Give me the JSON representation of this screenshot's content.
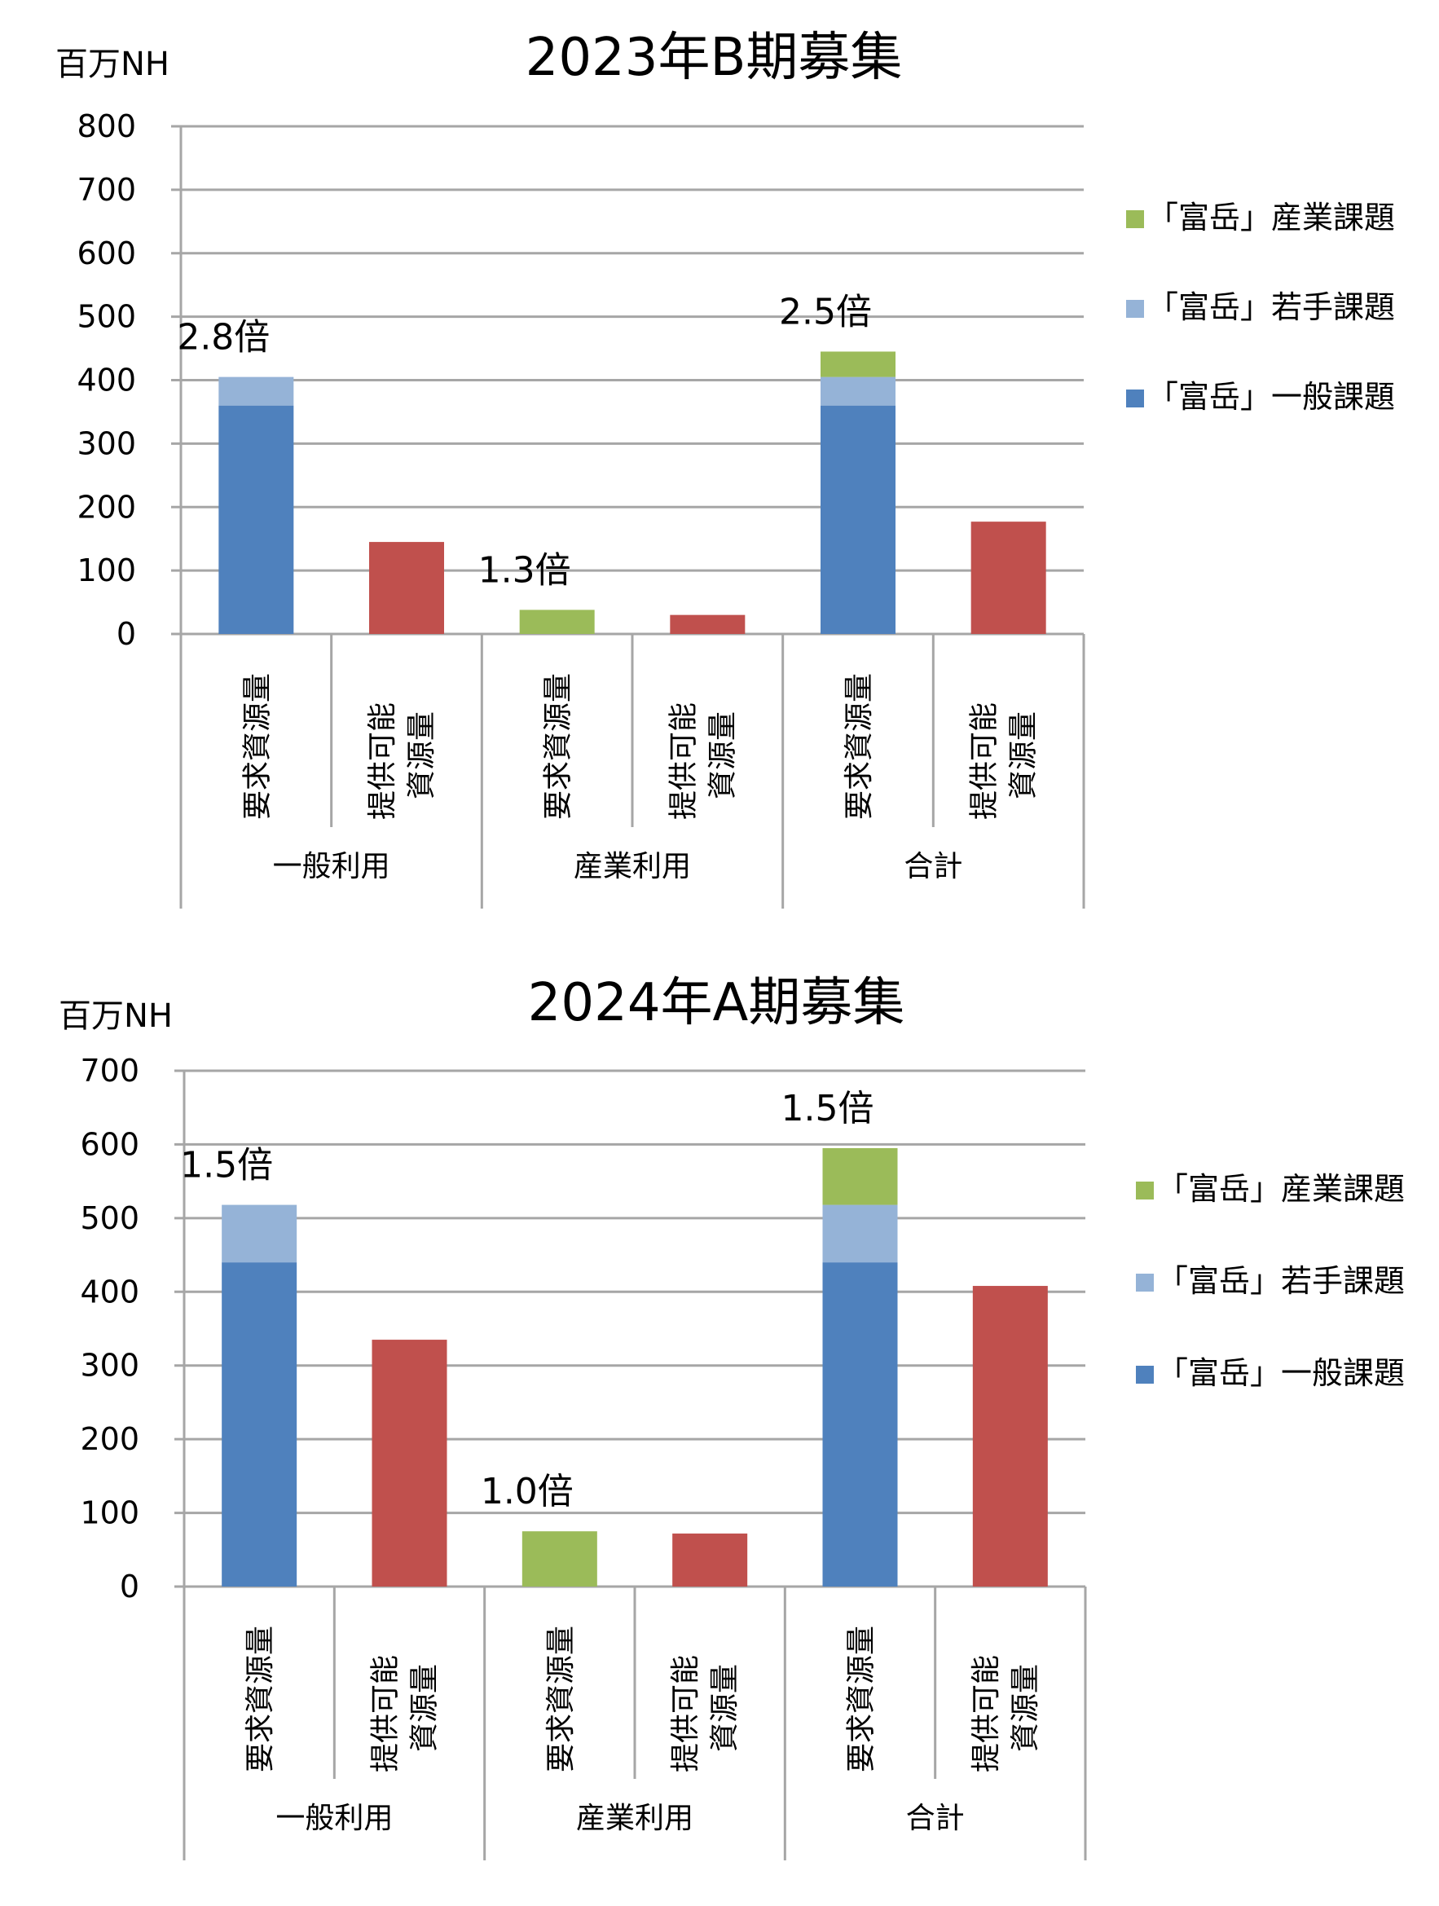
{
  "chart_data": [
    {
      "type": "bar",
      "stacked": true,
      "title": "2023年B期募集",
      "ylabel": "百万NH",
      "ylim": [
        0,
        800
      ],
      "yticks": [
        0,
        100,
        200,
        300,
        400,
        500,
        600,
        700,
        800
      ],
      "grid": true,
      "legend_position": "right",
      "groups": [
        "一般利用",
        "産業利用",
        "合計"
      ],
      "categories": [
        "要求資源量",
        "提供可能　資源量",
        "要求資源量",
        "提供可能　資源量",
        "要求資源量",
        "提供可能　資源量"
      ],
      "series": [
        {
          "name": "「富岳」一般課題",
          "color": "#4f81bd",
          "values": [
            360,
            0,
            0,
            0,
            360,
            0
          ]
        },
        {
          "name": "「富岳」若手課題",
          "color": "#95b3d7",
          "values": [
            45,
            0,
            0,
            0,
            45,
            0
          ]
        },
        {
          "name": "「富岳」産業課題",
          "color": "#9bbb59",
          "values": [
            0,
            0,
            38,
            0,
            40,
            0
          ]
        },
        {
          "name": "",
          "color": "#c0504d",
          "values": [
            0,
            145,
            0,
            30,
            0,
            177
          ]
        }
      ],
      "legend": [
        "「富岳」産業課題",
        "「富岳」若手課題",
        "「富岳」一般課題"
      ],
      "annotations": [
        "2.8倍",
        "",
        "1.3倍",
        "",
        "2.5倍",
        ""
      ]
    },
    {
      "type": "bar",
      "stacked": true,
      "title": "2024年A期募集",
      "ylabel": "百万NH",
      "ylim": [
        0,
        700
      ],
      "yticks": [
        0,
        100,
        200,
        300,
        400,
        500,
        600,
        700
      ],
      "grid": true,
      "legend_position": "right",
      "groups": [
        "一般利用",
        "産業利用",
        "合計"
      ],
      "categories": [
        "要求資源量",
        "提供可能　資源量",
        "要求資源量",
        "提供可能　資源量",
        "要求資源量",
        "提供可能　資源量"
      ],
      "series": [
        {
          "name": "「富岳」一般課題",
          "color": "#4f81bd",
          "values": [
            440,
            0,
            0,
            0,
            440,
            0
          ]
        },
        {
          "name": "「富岳」若手課題",
          "color": "#95b3d7",
          "values": [
            78,
            0,
            0,
            0,
            78,
            0
          ]
        },
        {
          "name": "「富岳」産業課題",
          "color": "#9bbb59",
          "values": [
            0,
            0,
            75,
            0,
            77,
            0
          ]
        },
        {
          "name": "",
          "color": "#c0504d",
          "values": [
            0,
            335,
            0,
            72,
            0,
            408
          ]
        }
      ],
      "legend": [
        "「富岳」産業課題",
        "「富岳」若手課題",
        "「富岳」一般課題"
      ],
      "annotations": [
        "1.5倍",
        "",
        "1.0倍",
        "",
        "1.5倍",
        ""
      ]
    }
  ]
}
